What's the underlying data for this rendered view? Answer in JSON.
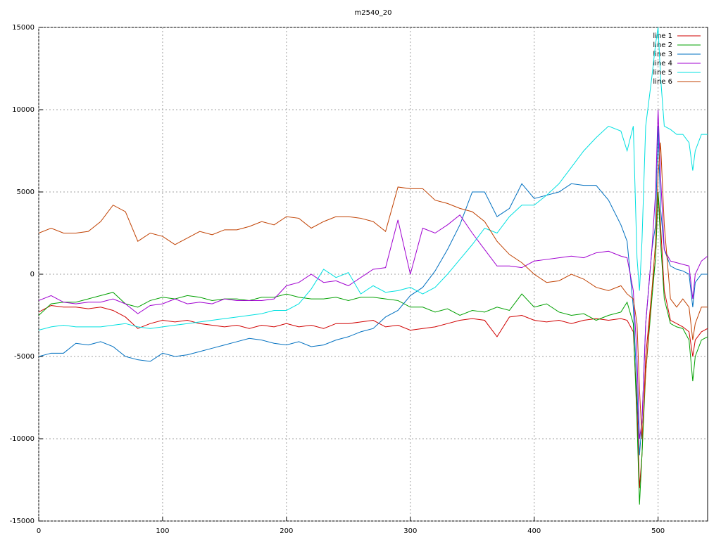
{
  "chart_data": {
    "type": "line",
    "title": "m2540_20",
    "x": [
      0,
      10,
      20,
      30,
      40,
      50,
      60,
      70,
      80,
      90,
      100,
      110,
      120,
      130,
      140,
      150,
      160,
      170,
      180,
      190,
      200,
      210,
      220,
      230,
      240,
      250,
      260,
      270,
      280,
      290,
      300,
      310,
      320,
      330,
      340,
      350,
      360,
      370,
      380,
      390,
      400,
      410,
      420,
      430,
      440,
      450,
      460,
      470,
      475,
      480,
      483,
      485,
      487,
      490,
      495,
      498,
      500,
      502,
      505,
      510,
      515,
      520,
      525,
      528,
      530,
      535,
      540
    ],
    "series": [
      {
        "name": "line 1",
        "color": "#d00000",
        "values": [
          -2300,
          -1900,
          -2000,
          -2000,
          -2100,
          -2000,
          -2200,
          -2600,
          -3300,
          -3000,
          -2800,
          -2900,
          -2800,
          -3000,
          -3100,
          -3200,
          -3100,
          -3300,
          -3100,
          -3200,
          -3000,
          -3200,
          -3100,
          -3300,
          -3000,
          -3000,
          -2900,
          -2800,
          -3200,
          -3100,
          -3400,
          -3300,
          -3200,
          -3000,
          -2800,
          -2700,
          -2800,
          -3800,
          -2600,
          -2500,
          -2800,
          -2900,
          -2800,
          -3000,
          -2800,
          -2700,
          -2800,
          -2700,
          -2800,
          -3500,
          -8000,
          -13000,
          -11000,
          -5000,
          -1000,
          1000,
          5000,
          3000,
          -1000,
          -2800,
          -3000,
          -3200,
          -3500,
          -5000,
          -4000,
          -3500,
          -3300
        ]
      },
      {
        "name": "line 2",
        "color": "#00a000",
        "values": [
          -2500,
          -1800,
          -1700,
          -1700,
          -1500,
          -1300,
          -1100,
          -1800,
          -2000,
          -1600,
          -1400,
          -1500,
          -1300,
          -1400,
          -1600,
          -1500,
          -1500,
          -1600,
          -1400,
          -1400,
          -1200,
          -1400,
          -1500,
          -1500,
          -1400,
          -1600,
          -1400,
          -1400,
          -1500,
          -1600,
          -2000,
          -2000,
          -2300,
          -2100,
          -2500,
          -2200,
          -2300,
          -2000,
          -2200,
          -1200,
          -2000,
          -1800,
          -2300,
          -2500,
          -2400,
          -2800,
          -2500,
          -2300,
          -1700,
          -3000,
          -9000,
          -14000,
          -11000,
          -6000,
          -1500,
          1000,
          5000,
          2000,
          -1500,
          -3000,
          -3200,
          -3300,
          -4000,
          -6500,
          -5000,
          -4000,
          -3800
        ]
      },
      {
        "name": "line 3",
        "color": "#0070c0",
        "values": [
          -5000,
          -4800,
          -4800,
          -4200,
          -4300,
          -4100,
          -4400,
          -5000,
          -5200,
          -5300,
          -4800,
          -5000,
          -4900,
          -4700,
          -4500,
          -4300,
          -4100,
          -3900,
          -4000,
          -4200,
          -4300,
          -4100,
          -4400,
          -4300,
          -4000,
          -3800,
          -3500,
          -3300,
          -2600,
          -2200,
          -1300,
          -800,
          200,
          1500,
          3000,
          5000,
          5000,
          3500,
          4000,
          5500,
          4600,
          4800,
          5000,
          5500,
          5400,
          5400,
          4500,
          3000,
          2000,
          -2000,
          -7000,
          -11000,
          -9000,
          -3000,
          1500,
          3000,
          9000,
          4000,
          1500,
          500,
          300,
          200,
          0,
          -2000,
          -500,
          0,
          0
        ]
      },
      {
        "name": "line 4",
        "color": "#a000d0",
        "values": [
          -1600,
          -1300,
          -1700,
          -1800,
          -1700,
          -1700,
          -1500,
          -1800,
          -2400,
          -1900,
          -1800,
          -1500,
          -1800,
          -1700,
          -1800,
          -1500,
          -1600,
          -1600,
          -1600,
          -1500,
          -700,
          -500,
          0,
          -500,
          -400,
          -700,
          -200,
          300,
          400,
          3300,
          0,
          2800,
          2500,
          3000,
          3600,
          2500,
          1500,
          500,
          500,
          400,
          800,
          900,
          1000,
          1100,
          1000,
          1300,
          1400,
          1100,
          1000,
          -1000,
          -5000,
          -10000,
          -9000,
          -3000,
          1500,
          5000,
          10000,
          6000,
          1500,
          800,
          700,
          600,
          500,
          -1500,
          0,
          800,
          1100
        ]
      },
      {
        "name": "line 5",
        "color": "#00e0e0",
        "values": [
          -3400,
          -3200,
          -3100,
          -3200,
          -3200,
          -3200,
          -3100,
          -3000,
          -3200,
          -3300,
          -3200,
          -3100,
          -3000,
          -2900,
          -2800,
          -2700,
          -2600,
          -2500,
          -2400,
          -2200,
          -2200,
          -1800,
          -900,
          300,
          -200,
          100,
          -1200,
          -700,
          -1100,
          -1000,
          -800,
          -1200,
          -800,
          0,
          900,
          1800,
          2800,
          2500,
          3500,
          4200,
          4200,
          4800,
          5500,
          6500,
          7500,
          8300,
          9000,
          8700,
          7500,
          9000,
          1000,
          -1000,
          2000,
          9000,
          12000,
          14000,
          15000,
          12000,
          9000,
          8800,
          8500,
          8500,
          8000,
          6300,
          7500,
          8500,
          8500
        ]
      },
      {
        "name": "line 6",
        "color": "#c04000",
        "values": [
          2500,
          2800,
          2500,
          2500,
          2600,
          3200,
          4200,
          3800,
          2000,
          2500,
          2300,
          1800,
          2200,
          2600,
          2400,
          2700,
          2700,
          2900,
          3200,
          3000,
          3500,
          3400,
          2800,
          3200,
          3500,
          3500,
          3400,
          3200,
          2600,
          5300,
          5200,
          5200,
          4500,
          4300,
          4000,
          3800,
          3200,
          2000,
          1200,
          700,
          0,
          -500,
          -400,
          0,
          -300,
          -800,
          -1000,
          -700,
          -1200,
          -1500,
          -3000,
          -7000,
          -10000,
          -6000,
          -1000,
          2000,
          6000,
          8000,
          3000,
          -1500,
          -2000,
          -1500,
          -2000,
          -4000,
          -3000,
          -2000,
          -2000
        ]
      }
    ],
    "xlim": [
      0,
      540
    ],
    "ylim": [
      -15000,
      15000
    ],
    "xticks": [
      0,
      100,
      200,
      300,
      400,
      500
    ],
    "yticks": [
      -15000,
      -10000,
      -5000,
      0,
      5000,
      10000,
      15000
    ],
    "grid": true,
    "legend": "upper right"
  }
}
